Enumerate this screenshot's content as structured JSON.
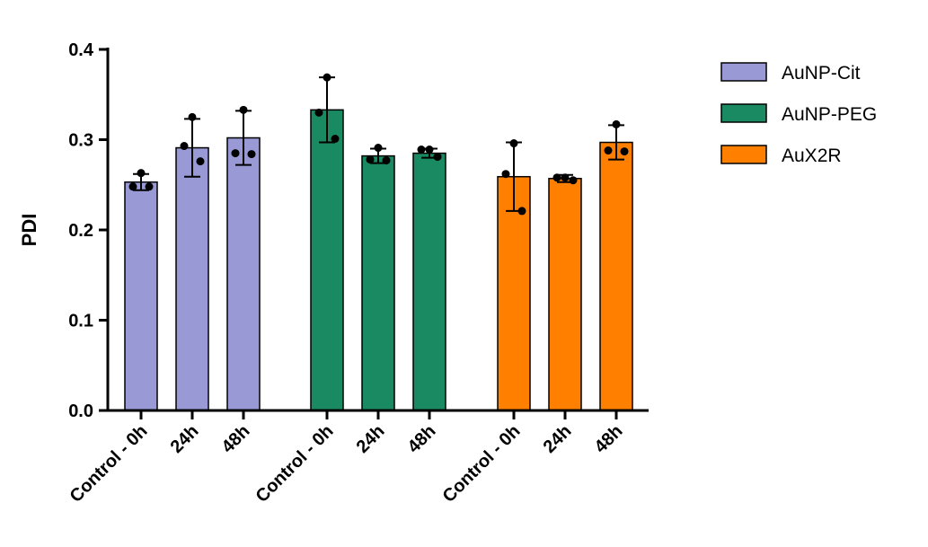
{
  "chart_data": {
    "type": "bar",
    "ylabel": "PDI",
    "xlabel": "",
    "ylim": [
      0,
      0.4
    ],
    "yticks": [
      "0.0",
      "0.1",
      "0.2",
      "0.3",
      "0.4"
    ],
    "grid": false,
    "legend_position": "top-right",
    "categories": [
      "Control - 0h",
      "24h",
      "48h"
    ],
    "series": [
      {
        "name": "AuNP-Cit",
        "color": "#9999d6",
        "values": [
          0.253,
          0.291,
          0.302
        ],
        "errors": [
          0.009,
          0.032,
          0.03
        ],
        "points": [
          [
            0.263,
            0.248,
            0.248
          ],
          [
            0.325,
            0.293,
            0.276
          ],
          [
            0.333,
            0.285,
            0.284
          ]
        ]
      },
      {
        "name": "AuNP-PEG",
        "color": "#1a8a62",
        "values": [
          0.333,
          0.282,
          0.285
        ],
        "errors": [
          0.036,
          0.008,
          0.005
        ],
        "points": [
          [
            0.369,
            0.33,
            0.301
          ],
          [
            0.291,
            0.278,
            0.277
          ],
          [
            0.289,
            0.289,
            0.281
          ]
        ]
      },
      {
        "name": "AuX2R",
        "color": "#ff8000",
        "values": [
          0.259,
          0.257,
          0.297
        ],
        "errors": [
          0.038,
          0.004,
          0.019
        ],
        "points": [
          [
            0.296,
            0.262,
            0.221
          ],
          [
            0.258,
            0.258,
            0.255
          ],
          [
            0.317,
            0.288,
            0.287
          ]
        ]
      }
    ]
  }
}
